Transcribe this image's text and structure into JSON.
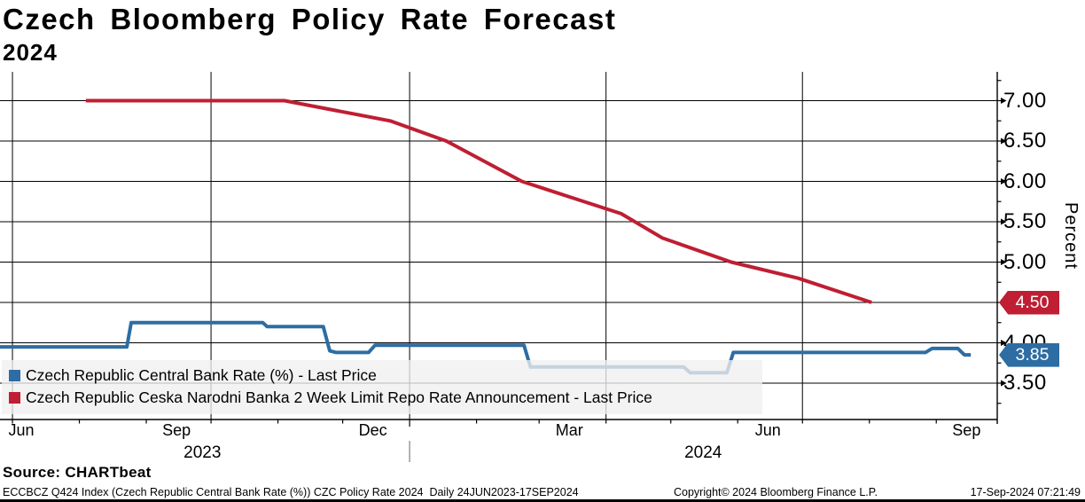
{
  "title": "Czech Bloomberg Policy Rate Forecast",
  "subtitle": "2024",
  "footer": {
    "source": "Source: CHARTbeat",
    "description": "ECCBCZ Q424 Index (Czech Republic Central Bank Rate (%)) CZC Policy Rate 2024  Daily 24JUN2023-17SEP2024",
    "copyright": "Copyright© 2024 Bloomberg Finance L.P.",
    "timestamp": "17-Sep-2024 07:21:49"
  },
  "chart_data": {
    "type": "line",
    "title": "Czech Bloomberg Policy Rate Forecast",
    "subtitle": "2024",
    "xlabel": "",
    "ylabel": "Percent",
    "grid": true,
    "legend_position": "bottom-left",
    "y_axis": {
      "title": "Percent",
      "side": "right",
      "range": [
        3.0,
        7.35
      ],
      "major_ticks": [
        7.0,
        6.5,
        6.0,
        5.5,
        5.0,
        4.5,
        4.0,
        3.5
      ],
      "labels": [
        "7.00",
        "6.50",
        "6.00",
        "5.50",
        "5.00",
        "4.50",
        "4.00",
        "3.50"
      ],
      "minor_ticks": [
        7.25,
        6.75,
        6.25,
        5.75,
        5.25,
        4.75,
        4.25,
        3.75,
        3.25
      ]
    },
    "x_axis": {
      "start": "24JUN2023",
      "end": "17SEP2024",
      "month_tick_days": [
        7,
        38,
        69,
        99,
        130,
        160,
        191,
        222,
        251,
        282,
        312,
        343,
        373,
        404,
        435
      ],
      "quarter_gridline_days": [
        7,
        99,
        191,
        282,
        373
      ],
      "year_separator_day": 191,
      "month_labels": [
        {
          "text": "Jun",
          "day": -9
        },
        {
          "text": "Sep",
          "day": 83
        },
        {
          "text": "Dec",
          "day": 174
        },
        {
          "text": "Mar",
          "day": 265
        },
        {
          "text": "Jun",
          "day": 357
        },
        {
          "text": "Sep",
          "day": 449
        }
      ],
      "year_labels": [
        {
          "text": "2023",
          "day": 95
        },
        {
          "text": "2024",
          "day": 327
        }
      ]
    },
    "series": [
      {
        "name": "Czech Republic Central Bank Rate (%) - Last Price",
        "color": "#2d6da3",
        "last_price": 3.85,
        "last_price_label": "3.85",
        "points": [
          [
            0,
            3.95
          ],
          [
            60,
            3.95
          ],
          [
            62,
            4.25
          ],
          [
            123,
            4.25
          ],
          [
            125,
            4.2
          ],
          [
            151,
            4.2
          ],
          [
            154,
            3.9
          ],
          [
            157,
            3.88
          ],
          [
            172,
            3.88
          ],
          [
            175,
            3.97
          ],
          [
            244,
            3.97
          ],
          [
            247,
            3.7
          ],
          [
            318,
            3.7
          ],
          [
            321,
            3.63
          ],
          [
            338,
            3.63
          ],
          [
            341,
            3.88
          ],
          [
            430,
            3.88
          ],
          [
            433,
            3.93
          ],
          [
            445,
            3.93
          ],
          [
            448,
            3.85
          ],
          [
            451,
            3.85
          ]
        ]
      },
      {
        "name": "Czech Republic Ceska Narodni Banka 2 Week Limit Repo Rate Announcement - Last Price",
        "color": "#bf1e33",
        "last_price": 4.5,
        "last_price_label": "4.50",
        "points": [
          [
            41,
            7.0
          ],
          [
            133,
            7.0
          ],
          [
            182,
            6.75
          ],
          [
            208,
            6.5
          ],
          [
            243,
            6.0
          ],
          [
            289,
            5.6
          ],
          [
            308,
            5.3
          ],
          [
            340,
            5.0
          ],
          [
            371,
            4.8
          ],
          [
            405,
            4.5
          ]
        ]
      }
    ]
  }
}
